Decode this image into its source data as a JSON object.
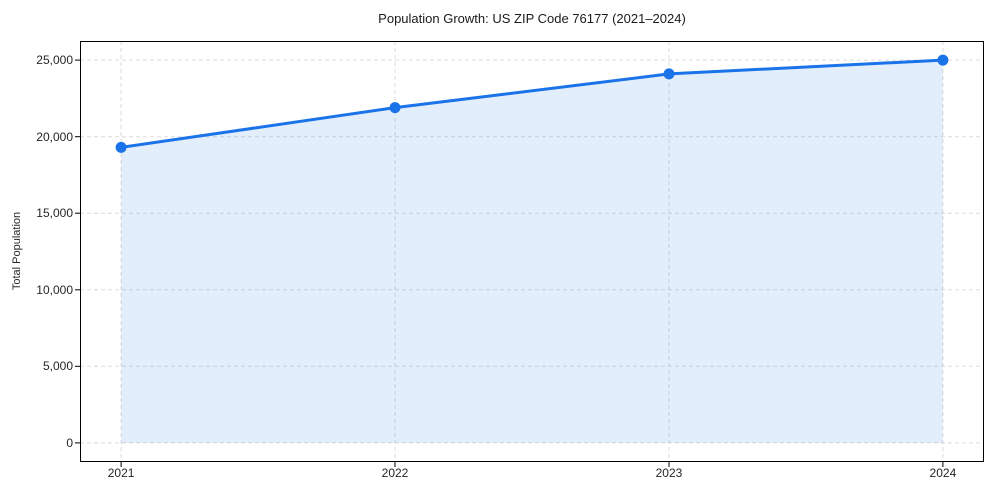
{
  "chart_data": {
    "type": "area",
    "title": "Population Growth: US ZIP Code 76177 (2021–2024)",
    "xlabel": "",
    "ylabel": "Total Population",
    "series": [
      {
        "name": "Total Population",
        "x": [
          2021,
          2022,
          2023,
          2024
        ],
        "values": [
          19300,
          21900,
          24100,
          25000
        ]
      }
    ],
    "xticks": [
      2021,
      2022,
      2023,
      2024
    ],
    "xtick_labels": [
      "2021",
      "2022",
      "2023",
      "2024"
    ],
    "yticks": [
      0,
      5000,
      10000,
      15000,
      20000,
      25000
    ],
    "ytick_labels": [
      "0",
      "5,000",
      "10,000",
      "15,000",
      "20,000",
      "25,000"
    ],
    "xlim": [
      2020.85,
      2024.15
    ],
    "ylim": [
      -1250,
      26250
    ],
    "grid": true,
    "grid_style": "dashed",
    "legend": false,
    "fill_to_zero": true,
    "colors": {
      "line": "#1a73e8",
      "marker": "#1a73e8",
      "fill": "rgba(26,115,232,0.12)",
      "grid": "#dbdbdb",
      "spine": "#000000",
      "tick_text": "#262626",
      "title_text": "#1a1a1a",
      "background": "#ffffff"
    }
  }
}
